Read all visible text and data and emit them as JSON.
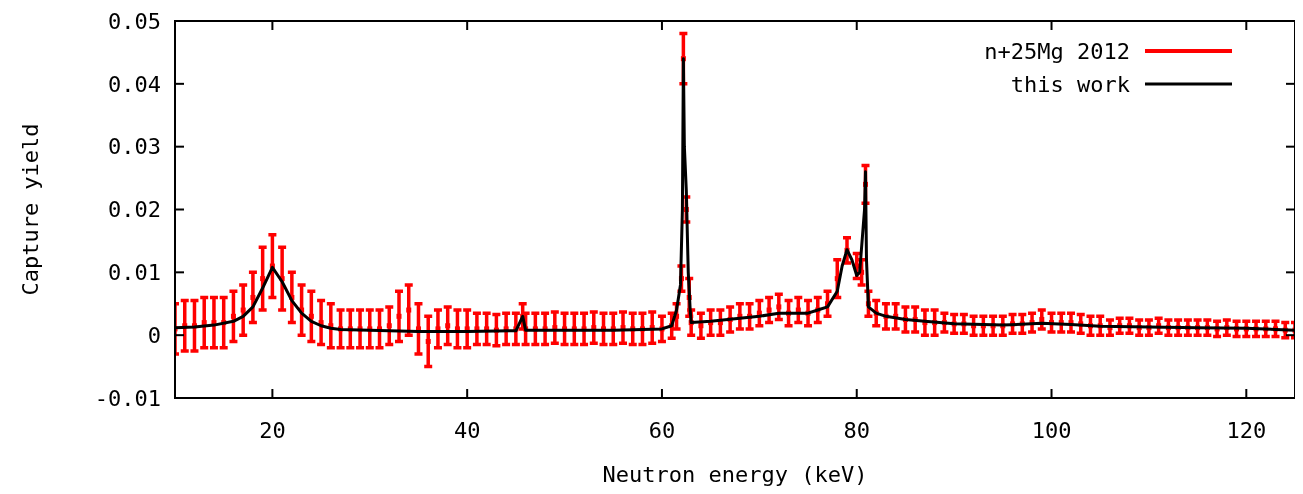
{
  "chart_data": {
    "type": "scatter",
    "xlabel": "Neutron energy (keV)",
    "ylabel": "Capture yield",
    "xlim": [
      10,
      125
    ],
    "xticks": [
      20,
      40,
      60,
      80,
      100,
      120
    ],
    "ylim": [
      -0.01,
      0.05
    ],
    "yticks": [
      -0.01,
      0,
      0.01,
      0.02,
      0.03,
      0.04,
      0.05
    ],
    "legend": "top right",
    "grid": false,
    "series": [
      {
        "name": "n+25Mg 2012",
        "color": "#ff0000",
        "marker": "square",
        "x": [
          10,
          11,
          12,
          13,
          14,
          15,
          16,
          17,
          18,
          19,
          20,
          21,
          22,
          23,
          24,
          25,
          26,
          27,
          28,
          29,
          30,
          31,
          32,
          33,
          34,
          35,
          36,
          37,
          38,
          39,
          40,
          41,
          42,
          43,
          44,
          45,
          45.7,
          46,
          47,
          48,
          49,
          50,
          51,
          52,
          53,
          54,
          55,
          56,
          57,
          58,
          59,
          60,
          61,
          61.5,
          62,
          62.2,
          62.5,
          62.8,
          63,
          64,
          65,
          66,
          67,
          68,
          69,
          70,
          71,
          72,
          73,
          74,
          75,
          76,
          77,
          78,
          79,
          80,
          80.5,
          80.9,
          81.2,
          82,
          83,
          84,
          85,
          86,
          87,
          88,
          89,
          90,
          91,
          92,
          93,
          94,
          95,
          96,
          97,
          98,
          99,
          100,
          101,
          102,
          103,
          104,
          105,
          106,
          107,
          108,
          109,
          110,
          111,
          112,
          113,
          114,
          115,
          116,
          117,
          118,
          119,
          120,
          121,
          122,
          123,
          124,
          125
        ],
        "values": [
          0.001,
          0.0015,
          0.0015,
          0.002,
          0.002,
          0.002,
          0.003,
          0.004,
          0.006,
          0.009,
          0.011,
          0.009,
          0.006,
          0.004,
          0.003,
          0.002,
          0.0015,
          0.001,
          0.001,
          0.001,
          0.001,
          0.001,
          0.0015,
          0.003,
          0.004,
          0.001,
          -0.001,
          0.001,
          0.0015,
          0.001,
          0.001,
          0.001,
          0.001,
          0.0008,
          0.001,
          0.001,
          0.003,
          0.001,
          0.001,
          0.001,
          0.0012,
          0.001,
          0.001,
          0.001,
          0.0012,
          0.001,
          0.001,
          0.0012,
          0.001,
          0.001,
          0.0012,
          0.001,
          0.0015,
          0.003,
          0.009,
          0.044,
          0.02,
          0.006,
          0.002,
          0.0015,
          0.002,
          0.002,
          0.0025,
          0.003,
          0.003,
          0.0035,
          0.004,
          0.0045,
          0.0035,
          0.004,
          0.0035,
          0.004,
          0.005,
          0.009,
          0.0135,
          0.011,
          0.01,
          0.024,
          0.005,
          0.0035,
          0.003,
          0.003,
          0.0025,
          0.0025,
          0.002,
          0.002,
          0.002,
          0.0018,
          0.0018,
          0.0015,
          0.0015,
          0.0015,
          0.0015,
          0.0018,
          0.0018,
          0.002,
          0.0025,
          0.002,
          0.002,
          0.002,
          0.0018,
          0.0015,
          0.0015,
          0.0012,
          0.0015,
          0.0015,
          0.0012,
          0.0012,
          0.0015,
          0.0012,
          0.0012,
          0.0012,
          0.0012,
          0.0012,
          0.001,
          0.0012,
          0.001,
          0.001,
          0.001,
          0.001,
          0.001,
          0.0008,
          0.0008
        ],
        "errors": [
          0.004,
          0.004,
          0.004,
          0.004,
          0.004,
          0.004,
          0.004,
          0.004,
          0.004,
          0.005,
          0.005,
          0.005,
          0.004,
          0.004,
          0.004,
          0.0035,
          0.0035,
          0.003,
          0.003,
          0.003,
          0.003,
          0.003,
          0.003,
          0.004,
          0.004,
          0.004,
          0.004,
          0.003,
          0.003,
          0.003,
          0.003,
          0.0025,
          0.0025,
          0.0025,
          0.0025,
          0.0025,
          0.002,
          0.0025,
          0.0025,
          0.0025,
          0.0025,
          0.0025,
          0.0025,
          0.0025,
          0.0025,
          0.0025,
          0.0025,
          0.0025,
          0.0025,
          0.0025,
          0.0025,
          0.002,
          0.002,
          0.002,
          0.002,
          0.004,
          0.002,
          0.003,
          0.002,
          0.002,
          0.002,
          0.002,
          0.002,
          0.002,
          0.002,
          0.002,
          0.002,
          0.002,
          0.002,
          0.002,
          0.002,
          0.002,
          0.002,
          0.003,
          0.002,
          0.002,
          0.002,
          0.003,
          0.002,
          0.002,
          0.002,
          0.002,
          0.002,
          0.002,
          0.002,
          0.002,
          0.0015,
          0.0015,
          0.0015,
          0.0015,
          0.0015,
          0.0015,
          0.0015,
          0.0015,
          0.0015,
          0.0015,
          0.0015,
          0.0015,
          0.0015,
          0.0015,
          0.0015,
          0.0015,
          0.0015,
          0.0012,
          0.0012,
          0.0012,
          0.0012,
          0.0012,
          0.0012,
          0.0012,
          0.0012,
          0.0012,
          0.0012,
          0.0012,
          0.0012,
          0.0012,
          0.0012,
          0.0012,
          0.0012,
          0.0012,
          0.0012,
          0.0012,
          0.0012
        ]
      },
      {
        "name": "this work",
        "type": "line",
        "color": "#000000",
        "x": [
          10,
          12,
          14,
          16,
          17,
          18,
          19,
          20,
          21,
          22,
          23,
          24,
          25,
          26,
          27,
          30,
          35,
          40,
          45,
          45.7,
          46,
          50,
          55,
          60,
          61,
          61.5,
          61.9,
          62.1,
          62.2,
          62.3,
          62.5,
          62.7,
          62.9,
          63,
          65,
          70,
          72,
          75,
          76,
          77,
          78,
          78.5,
          79,
          79.5,
          80,
          80.3,
          80.6,
          80.8,
          80.9,
          81,
          81.2,
          82,
          83,
          85,
          87,
          90,
          95,
          99,
          102,
          105,
          110,
          115,
          120,
          125
        ],
        "values": [
          0.0012,
          0.0013,
          0.0016,
          0.0022,
          0.003,
          0.0045,
          0.0075,
          0.0108,
          0.0085,
          0.0055,
          0.0035,
          0.0022,
          0.0015,
          0.0011,
          0.0009,
          0.0008,
          0.0006,
          0.0006,
          0.0007,
          0.003,
          0.0008,
          0.0008,
          0.0008,
          0.001,
          0.0015,
          0.004,
          0.008,
          0.02,
          0.044,
          0.03,
          0.023,
          0.01,
          0.004,
          0.002,
          0.0022,
          0.003,
          0.0035,
          0.0035,
          0.004,
          0.0045,
          0.007,
          0.011,
          0.0136,
          0.012,
          0.0095,
          0.01,
          0.016,
          0.02,
          0.026,
          0.012,
          0.0045,
          0.0035,
          0.003,
          0.0025,
          0.0022,
          0.0018,
          0.0016,
          0.0019,
          0.0017,
          0.0014,
          0.0013,
          0.0012,
          0.0011,
          0.0008
        ]
      }
    ]
  }
}
